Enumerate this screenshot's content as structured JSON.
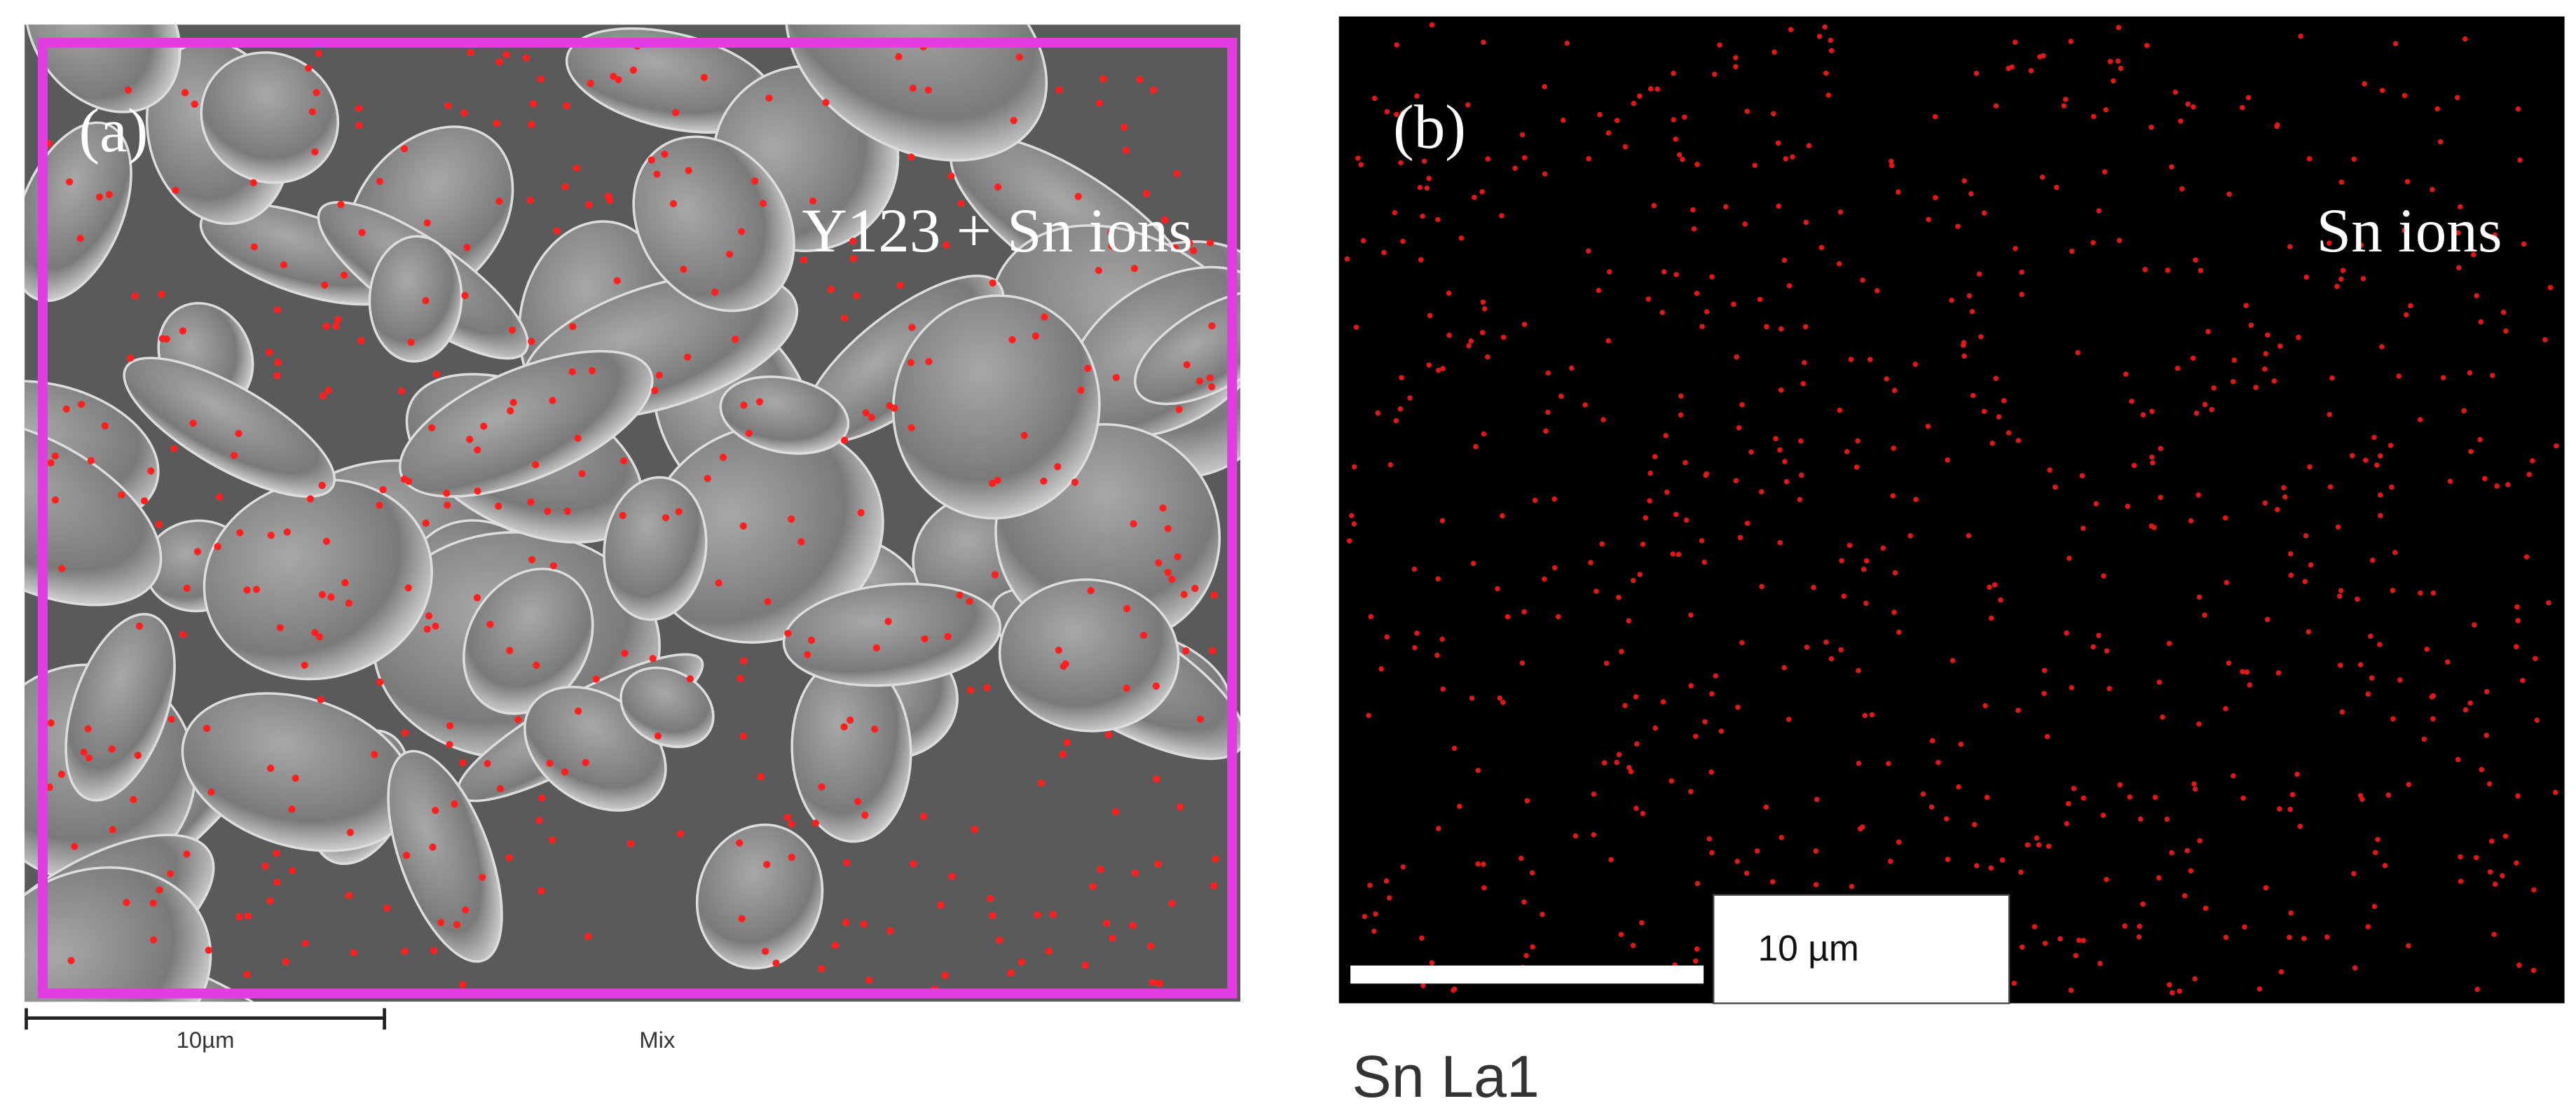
{
  "panels": [
    {
      "label": "(a)",
      "caption": "Y123 + Sn ions",
      "scale_bar": "10µm",
      "mode": "Mix"
    },
    {
      "label": "(b)",
      "caption": "Sn ions",
      "scale_bar": "10 µm",
      "map_name": "Sn La1"
    }
  ]
}
